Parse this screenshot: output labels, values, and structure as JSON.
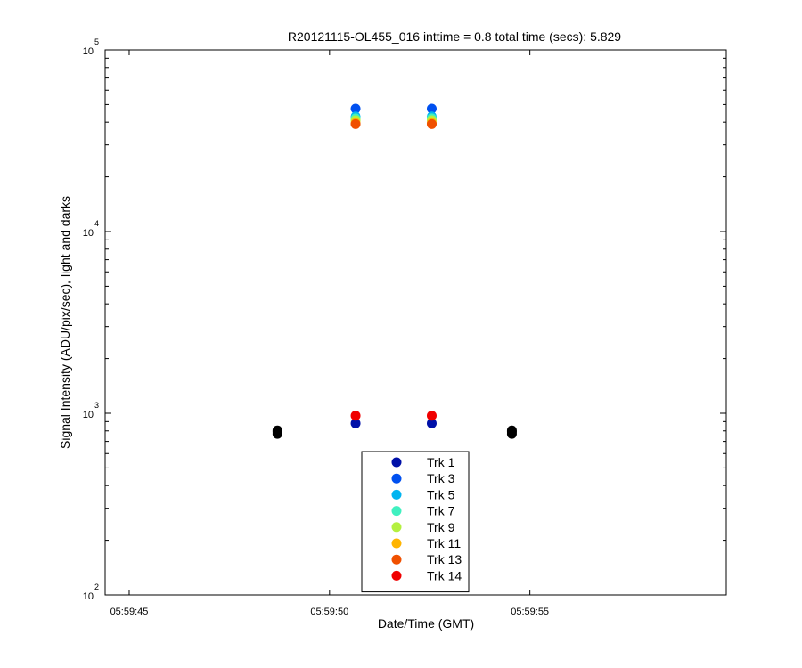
{
  "chart_data": {
    "type": "scatter",
    "title": "R20121115-OL455_016 inttime = 0.8 total time (secs): 5.829",
    "xlabel": "Date/Time (GMT)",
    "ylabel": "Signal Intensity (ADU/pix/sec), light and darks",
    "yscale": "log",
    "ylim": [
      100,
      100000
    ],
    "xlim": [
      "05:59:44.4",
      "05:59:59.9"
    ],
    "x_ticks": [
      "05:59:45",
      "05:59:50",
      "05:59:55"
    ],
    "y_ticks": [
      {
        "base": "10",
        "exp": "2",
        "value": 100
      },
      {
        "base": "10",
        "exp": "3",
        "value": 1000
      },
      {
        "base": "10",
        "exp": "4",
        "value": 10000
      },
      {
        "base": "10",
        "exp": "5",
        "value": 100000
      }
    ],
    "grid": false,
    "legend_position": "bottom-center",
    "series": [
      {
        "name": "Trk 1",
        "color": "#0010a8",
        "points": [
          {
            "x": "05:59:50.65",
            "y": 880
          },
          {
            "x": "05:59:52.55",
            "y": 880
          }
        ]
      },
      {
        "name": "Trk 3",
        "color": "#0050f0",
        "points": [
          {
            "x": "05:59:50.65",
            "y": 47500
          },
          {
            "x": "05:59:52.55",
            "y": 47500
          }
        ]
      },
      {
        "name": "Trk 5",
        "color": "#00b4f0",
        "points": [
          {
            "x": "05:59:50.65",
            "y": 43000
          },
          {
            "x": "05:59:52.55",
            "y": 43000
          }
        ]
      },
      {
        "name": "Trk 7",
        "color": "#40f0c0",
        "points": [
          {
            "x": "05:59:50.65",
            "y": 42000
          },
          {
            "x": "05:59:52.55",
            "y": 42000
          }
        ]
      },
      {
        "name": "Trk 9",
        "color": "#b4f040",
        "points": [
          {
            "x": "05:59:50.65",
            "y": 41000
          },
          {
            "x": "05:59:52.55",
            "y": 41000
          }
        ]
      },
      {
        "name": "Trk 11",
        "color": "#ffb400",
        "points": [
          {
            "x": "05:59:50.65",
            "y": 39500
          },
          {
            "x": "05:59:52.55",
            "y": 39500
          }
        ]
      },
      {
        "name": "Trk 13",
        "color": "#f05000",
        "points": [
          {
            "x": "05:59:50.65",
            "y": 39000
          },
          {
            "x": "05:59:52.55",
            "y": 39000
          }
        ]
      },
      {
        "name": "Trk 14",
        "color": "#f00000",
        "points": [
          {
            "x": "05:59:50.65",
            "y": 970
          },
          {
            "x": "05:59:52.55",
            "y": 970
          }
        ]
      }
    ],
    "dark_points": {
      "color": "#000000",
      "points": [
        {
          "x": "05:59:48.70",
          "y": 770
        },
        {
          "x": "05:59:48.70",
          "y": 790
        },
        {
          "x": "05:59:48.70",
          "y": 805
        },
        {
          "x": "05:59:54.55",
          "y": 770
        },
        {
          "x": "05:59:54.55",
          "y": 790
        },
        {
          "x": "05:59:54.55",
          "y": 805
        }
      ]
    }
  }
}
